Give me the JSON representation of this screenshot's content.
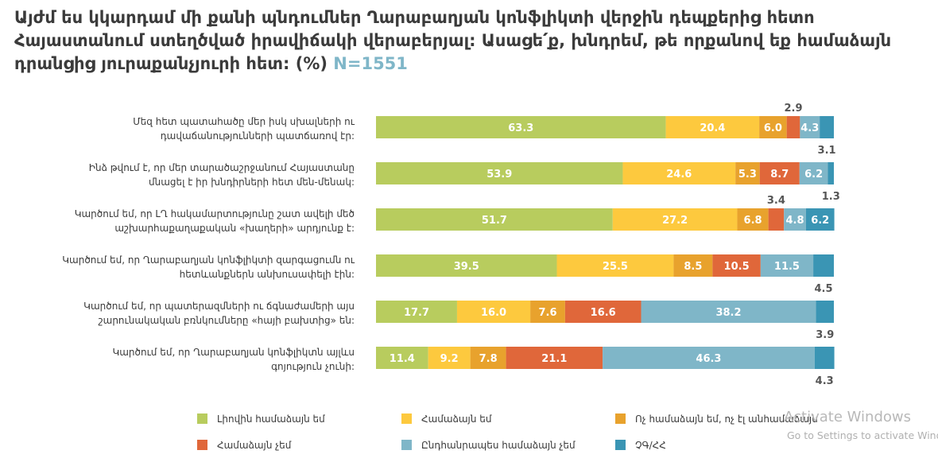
{
  "title_text": "Այժմ ես կկարդամ մի քանի պնդումներ Ղարաբաղյան կոնֆլիկտի վերջին դեպքերից հետո Հայաստանում ստեղծված իրավիճակի վերաբերյալ: Ասացե՛ք, խնդրեմ, թե որքանով եք համաձայն դրանցից յուրաքանչյուրի հետ: (%)",
  "title_n": "N=1551",
  "watermark": {
    "line1": "Activate Windows",
    "line2": "Go to Settings to activate Windows."
  },
  "colors": [
    "#b8cc5e",
    "#fdc93e",
    "#e8a22d",
    "#e0673a",
    "#7fb6c8",
    "#3a95b4"
  ],
  "chart_data": {
    "type": "bar",
    "orientation": "horizontal",
    "stacked": true,
    "categories": [
      [
        "Մեզ հետ պատահածը մեր իսկ սխալների ու",
        "դավաճանությունների պատճառով էր:"
      ],
      [
        "Ինձ թվում է, որ մեր տարածաշրջանում Հայաստանը",
        "մնացել է իր խնդիրների հետ մեն-մենակ:"
      ],
      [
        "Կարծում եմ, որ ԼՂ հակամարտությունը շատ ավելի մեծ",
        "աշխարհաքաղաքական «խաղերի» արդյունք է:"
      ],
      [
        "Կարծում եմ, որ Ղարաբաղյան կոնֆլիկտի զարգացումն ու",
        "հետևանքներն անխուսափելի էին:"
      ],
      [
        "Կարծում եմ, որ պատերազմների ու ճգնաժամերի այս",
        "շարունակական բռնկումները «հայի բախտից» են:"
      ],
      [
        "Կարծում եմ, որ Ղարաբաղյան կոնֆլիկտն այլևս",
        "գոյություն չունի:"
      ]
    ],
    "series": [
      {
        "name": "Լիովին համաձայն եմ",
        "values": [
          63.3,
          53.9,
          51.7,
          39.5,
          17.7,
          11.4
        ]
      },
      {
        "name": "Համաձայն եմ",
        "values": [
          20.4,
          24.6,
          27.2,
          25.5,
          16.0,
          9.2
        ]
      },
      {
        "name": "Ոչ համաձայն եմ, ոչ էլ անհամաձայն",
        "values": [
          6.0,
          5.3,
          6.8,
          8.5,
          7.6,
          7.8
        ]
      },
      {
        "name": "Համաձայն չեմ",
        "values": [
          2.9,
          8.7,
          3.4,
          10.5,
          16.6,
          21.1
        ]
      },
      {
        "name": "Ընդհանրապես համաձայն չեմ",
        "values": [
          4.3,
          6.2,
          4.8,
          11.5,
          38.2,
          46.3
        ]
      },
      {
        "name": "ՉԳ/ՀՀ",
        "values": [
          3.1,
          1.3,
          6.2,
          4.5,
          3.9,
          4.3
        ]
      }
    ],
    "label_text": [
      [
        "63.3",
        "20.4",
        "6.0",
        "2.9",
        "4.3",
        "3.1"
      ],
      [
        "53.9",
        "24.6",
        "5.3",
        "8.7",
        "6.2",
        "1.3"
      ],
      [
        "51.7",
        "27.2",
        "6.8",
        "3.4",
        "4.8",
        "6.2"
      ],
      [
        "39.5",
        "25.5",
        "8.5",
        "10.5",
        "11.5",
        "4.5"
      ],
      [
        "17.7",
        "16.0",
        "7.6",
        "16.6",
        "38.2",
        "3.9"
      ],
      [
        "11.4",
        "9.2",
        "7.8",
        "21.1",
        "46.3",
        "4.3"
      ]
    ],
    "outside_labels": [
      {
        "row": 0,
        "series": 3,
        "position": "above"
      },
      {
        "row": 0,
        "series": 5,
        "position": "below"
      },
      {
        "row": 1,
        "series": 5,
        "position": "below"
      },
      {
        "row": 2,
        "series": 3,
        "position": "above"
      },
      {
        "row": 3,
        "series": 5,
        "position": "below"
      },
      {
        "row": 4,
        "series": 5,
        "position": "below"
      },
      {
        "row": 5,
        "series": 5,
        "position": "below"
      }
    ],
    "xlim": [
      0,
      100
    ],
    "grid": false,
    "legend_position": "bottom"
  }
}
